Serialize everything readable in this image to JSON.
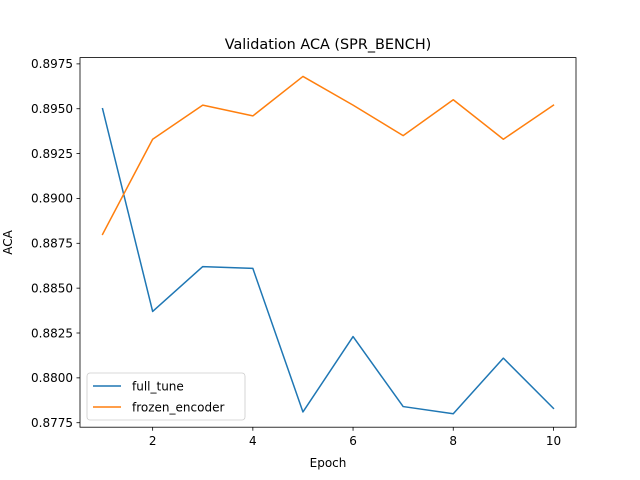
{
  "chart_data": {
    "type": "line",
    "title": "Validation ACA (SPR_BENCH)",
    "xlabel": "Epoch",
    "ylabel": "ACA",
    "xlim": [
      0.55,
      10.45
    ],
    "ylim": [
      0.87725,
      0.89785
    ],
    "x_ticks": [
      2,
      4,
      6,
      8,
      10
    ],
    "x_tick_labels": [
      "2",
      "4",
      "6",
      "8",
      "10"
    ],
    "y_ticks": [
      0.8775,
      0.88,
      0.8825,
      0.885,
      0.8875,
      0.89,
      0.8925,
      0.895,
      0.8975
    ],
    "y_tick_labels": [
      "0.8775",
      "0.8800",
      "0.8825",
      "0.8850",
      "0.8875",
      "0.8900",
      "0.8925",
      "0.8950",
      "0.8975"
    ],
    "grid": false,
    "legend_position": "lower-left",
    "x": [
      1,
      2,
      3,
      4,
      5,
      6,
      7,
      8,
      9,
      10
    ],
    "series": [
      {
        "name": "full_tune",
        "color": "#1f77b4",
        "values": [
          0.895,
          0.8837,
          0.8862,
          0.8861,
          0.8781,
          0.8823,
          0.8784,
          0.878,
          0.8811,
          0.8783
        ]
      },
      {
        "name": "frozen_encoder",
        "color": "#ff7f0e",
        "values": [
          0.888,
          0.8933,
          0.8952,
          0.8946,
          0.8968,
          0.8952,
          0.8935,
          0.8955,
          0.8933,
          0.8952
        ]
      }
    ]
  }
}
